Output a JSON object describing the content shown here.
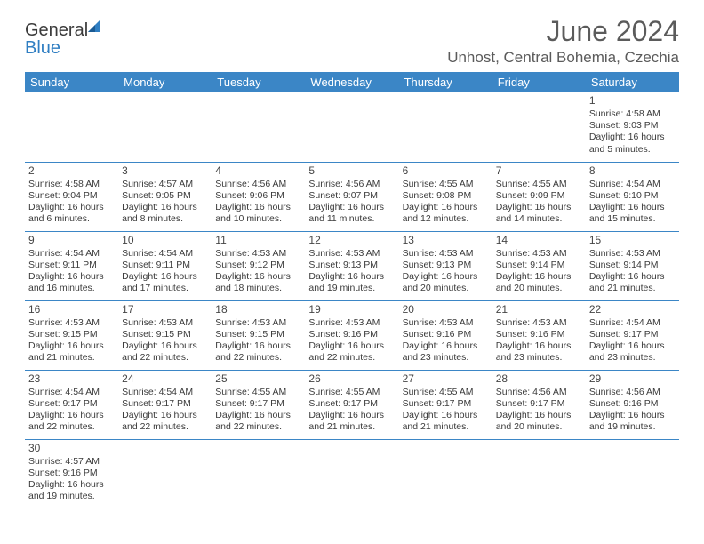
{
  "brand": {
    "name_part1": "General",
    "name_part2": "Blue"
  },
  "title": "June 2024",
  "location": "Unhost, Central Bohemia, Czechia",
  "colors": {
    "header_bg": "#3b86c6",
    "header_text": "#ffffff",
    "text": "#3b3b3b",
    "rule": "#3b86c6"
  },
  "day_headers": [
    "Sunday",
    "Monday",
    "Tuesday",
    "Wednesday",
    "Thursday",
    "Friday",
    "Saturday"
  ],
  "weeks": [
    [
      null,
      null,
      null,
      null,
      null,
      null,
      {
        "n": "1",
        "sr": "Sunrise: 4:58 AM",
        "ss": "Sunset: 9:03 PM",
        "d1": "Daylight: 16 hours",
        "d2": "and 5 minutes."
      }
    ],
    [
      {
        "n": "2",
        "sr": "Sunrise: 4:58 AM",
        "ss": "Sunset: 9:04 PM",
        "d1": "Daylight: 16 hours",
        "d2": "and 6 minutes."
      },
      {
        "n": "3",
        "sr": "Sunrise: 4:57 AM",
        "ss": "Sunset: 9:05 PM",
        "d1": "Daylight: 16 hours",
        "d2": "and 8 minutes."
      },
      {
        "n": "4",
        "sr": "Sunrise: 4:56 AM",
        "ss": "Sunset: 9:06 PM",
        "d1": "Daylight: 16 hours",
        "d2": "and 10 minutes."
      },
      {
        "n": "5",
        "sr": "Sunrise: 4:56 AM",
        "ss": "Sunset: 9:07 PM",
        "d1": "Daylight: 16 hours",
        "d2": "and 11 minutes."
      },
      {
        "n": "6",
        "sr": "Sunrise: 4:55 AM",
        "ss": "Sunset: 9:08 PM",
        "d1": "Daylight: 16 hours",
        "d2": "and 12 minutes."
      },
      {
        "n": "7",
        "sr": "Sunrise: 4:55 AM",
        "ss": "Sunset: 9:09 PM",
        "d1": "Daylight: 16 hours",
        "d2": "and 14 minutes."
      },
      {
        "n": "8",
        "sr": "Sunrise: 4:54 AM",
        "ss": "Sunset: 9:10 PM",
        "d1": "Daylight: 16 hours",
        "d2": "and 15 minutes."
      }
    ],
    [
      {
        "n": "9",
        "sr": "Sunrise: 4:54 AM",
        "ss": "Sunset: 9:11 PM",
        "d1": "Daylight: 16 hours",
        "d2": "and 16 minutes."
      },
      {
        "n": "10",
        "sr": "Sunrise: 4:54 AM",
        "ss": "Sunset: 9:11 PM",
        "d1": "Daylight: 16 hours",
        "d2": "and 17 minutes."
      },
      {
        "n": "11",
        "sr": "Sunrise: 4:53 AM",
        "ss": "Sunset: 9:12 PM",
        "d1": "Daylight: 16 hours",
        "d2": "and 18 minutes."
      },
      {
        "n": "12",
        "sr": "Sunrise: 4:53 AM",
        "ss": "Sunset: 9:13 PM",
        "d1": "Daylight: 16 hours",
        "d2": "and 19 minutes."
      },
      {
        "n": "13",
        "sr": "Sunrise: 4:53 AM",
        "ss": "Sunset: 9:13 PM",
        "d1": "Daylight: 16 hours",
        "d2": "and 20 minutes."
      },
      {
        "n": "14",
        "sr": "Sunrise: 4:53 AM",
        "ss": "Sunset: 9:14 PM",
        "d1": "Daylight: 16 hours",
        "d2": "and 20 minutes."
      },
      {
        "n": "15",
        "sr": "Sunrise: 4:53 AM",
        "ss": "Sunset: 9:14 PM",
        "d1": "Daylight: 16 hours",
        "d2": "and 21 minutes."
      }
    ],
    [
      {
        "n": "16",
        "sr": "Sunrise: 4:53 AM",
        "ss": "Sunset: 9:15 PM",
        "d1": "Daylight: 16 hours",
        "d2": "and 21 minutes."
      },
      {
        "n": "17",
        "sr": "Sunrise: 4:53 AM",
        "ss": "Sunset: 9:15 PM",
        "d1": "Daylight: 16 hours",
        "d2": "and 22 minutes."
      },
      {
        "n": "18",
        "sr": "Sunrise: 4:53 AM",
        "ss": "Sunset: 9:15 PM",
        "d1": "Daylight: 16 hours",
        "d2": "and 22 minutes."
      },
      {
        "n": "19",
        "sr": "Sunrise: 4:53 AM",
        "ss": "Sunset: 9:16 PM",
        "d1": "Daylight: 16 hours",
        "d2": "and 22 minutes."
      },
      {
        "n": "20",
        "sr": "Sunrise: 4:53 AM",
        "ss": "Sunset: 9:16 PM",
        "d1": "Daylight: 16 hours",
        "d2": "and 23 minutes."
      },
      {
        "n": "21",
        "sr": "Sunrise: 4:53 AM",
        "ss": "Sunset: 9:16 PM",
        "d1": "Daylight: 16 hours",
        "d2": "and 23 minutes."
      },
      {
        "n": "22",
        "sr": "Sunrise: 4:54 AM",
        "ss": "Sunset: 9:17 PM",
        "d1": "Daylight: 16 hours",
        "d2": "and 23 minutes."
      }
    ],
    [
      {
        "n": "23",
        "sr": "Sunrise: 4:54 AM",
        "ss": "Sunset: 9:17 PM",
        "d1": "Daylight: 16 hours",
        "d2": "and 22 minutes."
      },
      {
        "n": "24",
        "sr": "Sunrise: 4:54 AM",
        "ss": "Sunset: 9:17 PM",
        "d1": "Daylight: 16 hours",
        "d2": "and 22 minutes."
      },
      {
        "n": "25",
        "sr": "Sunrise: 4:55 AM",
        "ss": "Sunset: 9:17 PM",
        "d1": "Daylight: 16 hours",
        "d2": "and 22 minutes."
      },
      {
        "n": "26",
        "sr": "Sunrise: 4:55 AM",
        "ss": "Sunset: 9:17 PM",
        "d1": "Daylight: 16 hours",
        "d2": "and 21 minutes."
      },
      {
        "n": "27",
        "sr": "Sunrise: 4:55 AM",
        "ss": "Sunset: 9:17 PM",
        "d1": "Daylight: 16 hours",
        "d2": "and 21 minutes."
      },
      {
        "n": "28",
        "sr": "Sunrise: 4:56 AM",
        "ss": "Sunset: 9:17 PM",
        "d1": "Daylight: 16 hours",
        "d2": "and 20 minutes."
      },
      {
        "n": "29",
        "sr": "Sunrise: 4:56 AM",
        "ss": "Sunset: 9:16 PM",
        "d1": "Daylight: 16 hours",
        "d2": "and 19 minutes."
      }
    ],
    [
      {
        "n": "30",
        "sr": "Sunrise: 4:57 AM",
        "ss": "Sunset: 9:16 PM",
        "d1": "Daylight: 16 hours",
        "d2": "and 19 minutes."
      },
      null,
      null,
      null,
      null,
      null,
      null
    ]
  ]
}
